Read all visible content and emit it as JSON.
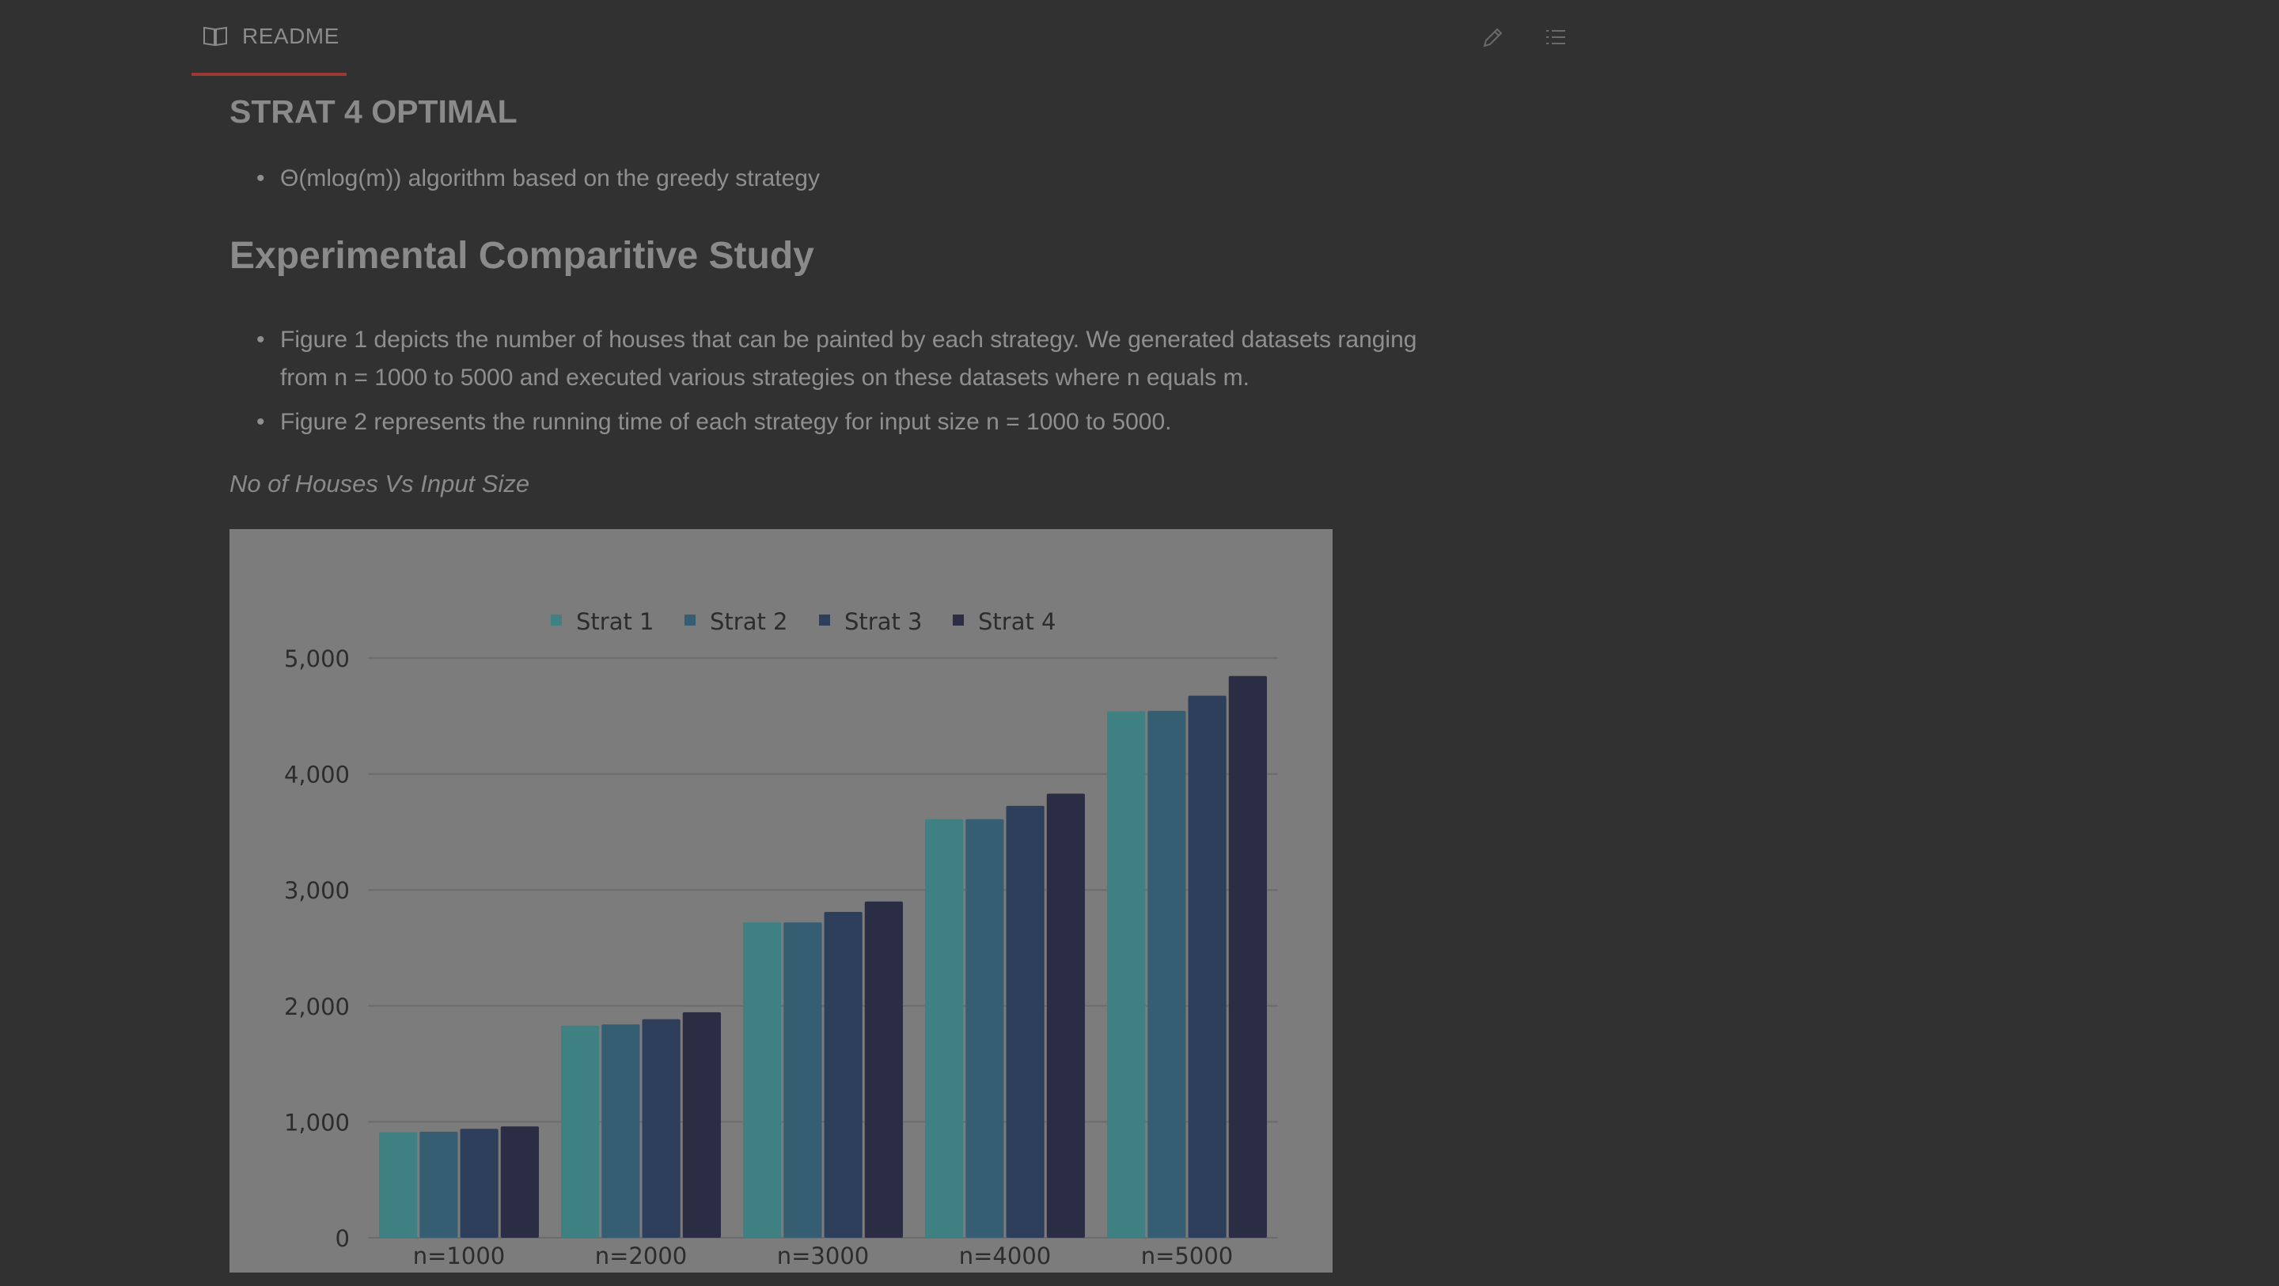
{
  "tab": {
    "icon": "book-icon",
    "label": "README"
  },
  "toolbar": {
    "edit_icon": "pencil-icon",
    "toc_icon": "list-icon"
  },
  "doc": {
    "strat4_heading": "STRAT 4 OPTIMAL",
    "strat4_bullet": "Θ(mlog(m)) algorithm based on the greedy strategy",
    "study_heading": "Experimental Comparitive Study",
    "bullets": [
      "Figure 1 depicts the number of houses that can be painted by each strategy. We generated datasets ranging",
      "from n = 1000 to 5000 and executed various strategies on these datasets where n equals m.",
      "Figure 2 represents the running time of each strategy for input size n = 1000 to 5000."
    ],
    "figure_caption": "No of Houses Vs Input Size"
  },
  "colors": {
    "background": "#313131",
    "chart_bg": "#7c7c7c",
    "tab_underline": "#9b3a33"
  },
  "chart_data": {
    "type": "bar",
    "categories": [
      "n=1000",
      "n=2000",
      "n=3000",
      "n=4000",
      "n=5000"
    ],
    "series": [
      {
        "name": "Strat 1",
        "color": "#3f8183",
        "values": [
          910,
          1830,
          2720,
          3610,
          4540
        ]
      },
      {
        "name": "Strat 2",
        "color": "#365e73",
        "values": [
          915,
          1840,
          2720,
          3610,
          4545
        ]
      },
      {
        "name": "Strat 3",
        "color": "#2e3f5c",
        "values": [
          940,
          1885,
          2810,
          3725,
          4675
        ]
      },
      {
        "name": "Strat 4",
        "color": "#2a2d43",
        "values": [
          960,
          1945,
          2900,
          3830,
          4845
        ]
      }
    ],
    "ylim": [
      0,
      5000
    ],
    "yticks": [
      "0",
      "1,000",
      "2,000",
      "3,000",
      "4,000",
      "5,000"
    ],
    "grid": true,
    "legend_position": "top-center"
  }
}
